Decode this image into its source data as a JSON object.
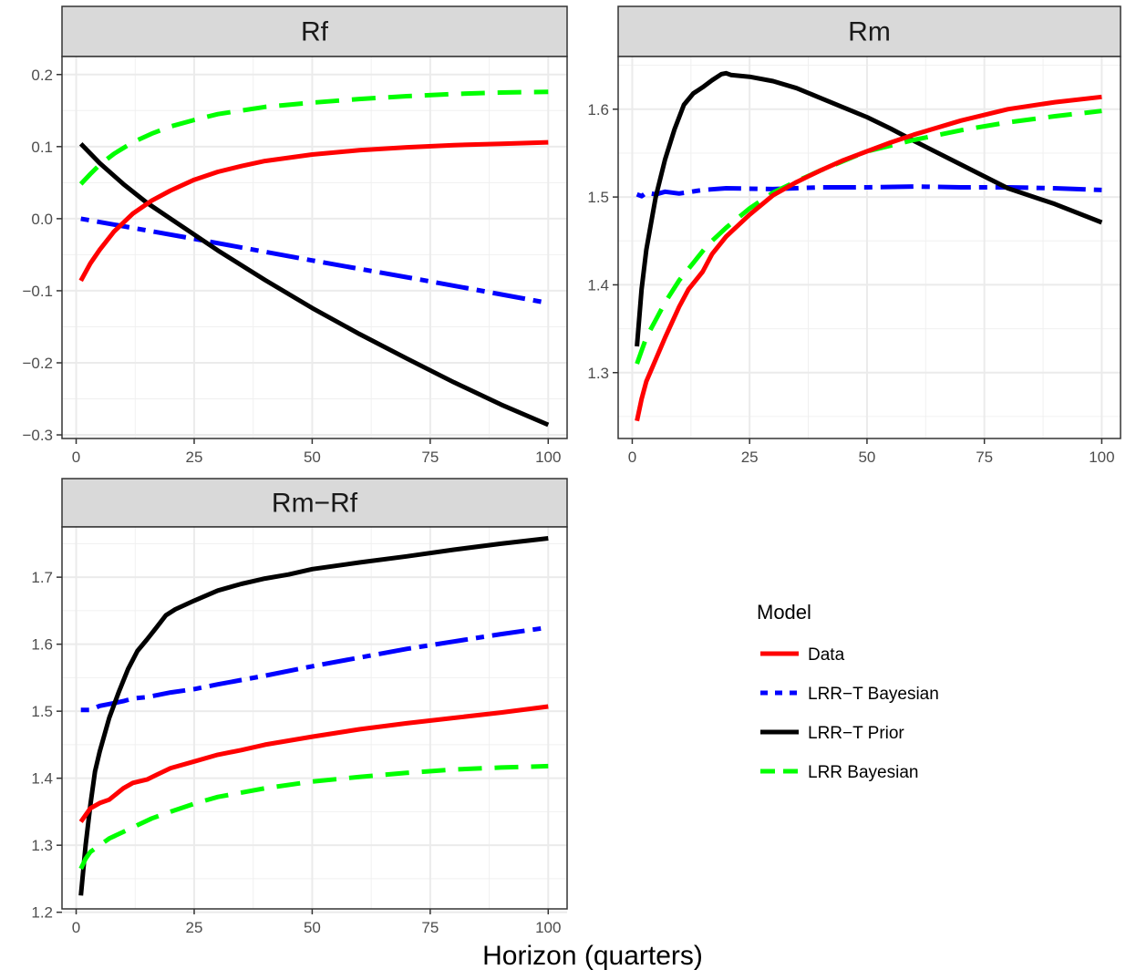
{
  "xlabel": "Horizon (quarters)",
  "legend": {
    "title": "Model",
    "entries": [
      {
        "key": "data",
        "label": "Data",
        "color": "#ff0000",
        "dash": "solid"
      },
      {
        "key": "lrrt_bayes",
        "label": "LRR−T Bayesian",
        "color": "#0000ff",
        "dash": "dotdash"
      },
      {
        "key": "lrrt_prior",
        "label": "LRR−T Prior",
        "color": "#000000",
        "dash": "solid"
      },
      {
        "key": "lrr_bayes",
        "label": "LRR Bayesian",
        "color": "#00ff00",
        "dash": "dashed"
      }
    ]
  },
  "chart_data": [
    {
      "type": "line",
      "title": "Rf",
      "xlim": [
        -3,
        104
      ],
      "ylim": [
        -0.305,
        0.225
      ],
      "xticks": [
        0,
        25,
        50,
        75,
        100
      ],
      "yticks": [
        -0.3,
        -0.2,
        -0.1,
        0.0,
        0.1,
        0.2
      ],
      "ytick_labels": [
        "−0.3",
        "−0.2",
        "−0.1",
        "0.0",
        "0.1",
        "0.2"
      ],
      "series": [
        {
          "key": "data",
          "name": "Data",
          "x": [
            1,
            3,
            5,
            8,
            12,
            16,
            20,
            25,
            30,
            35,
            40,
            50,
            60,
            70,
            80,
            90,
            100
          ],
          "y": [
            -0.086,
            -0.062,
            -0.043,
            -0.018,
            0.007,
            0.025,
            0.039,
            0.054,
            0.065,
            0.073,
            0.08,
            0.089,
            0.095,
            0.099,
            0.102,
            0.104,
            0.106
          ]
        },
        {
          "key": "lrrt_bayes",
          "name": "LRR−T Bayesian",
          "x": [
            1,
            25,
            50,
            75,
            100
          ],
          "y": [
            0.0,
            -0.028,
            -0.058,
            -0.087,
            -0.117
          ]
        },
        {
          "key": "lrrt_prior",
          "name": "LRR−T Prior",
          "x": [
            1,
            5,
            10,
            15,
            20,
            25,
            30,
            40,
            50,
            60,
            70,
            80,
            90,
            100
          ],
          "y": [
            0.104,
            0.077,
            0.048,
            0.022,
            0.0,
            -0.022,
            -0.044,
            -0.085,
            -0.124,
            -0.16,
            -0.194,
            -0.227,
            -0.258,
            -0.286
          ]
        },
        {
          "key": "lrr_bayes",
          "name": "LRR Bayesian",
          "x": [
            1,
            3,
            5,
            8,
            12,
            16,
            20,
            25,
            30,
            40,
            50,
            60,
            70,
            80,
            90,
            100
          ],
          "y": [
            0.048,
            0.062,
            0.075,
            0.09,
            0.106,
            0.118,
            0.128,
            0.137,
            0.145,
            0.155,
            0.161,
            0.166,
            0.17,
            0.173,
            0.175,
            0.176
          ]
        }
      ]
    },
    {
      "type": "line",
      "title": "Rm",
      "xlim": [
        -3,
        104
      ],
      "ylim": [
        1.225,
        1.66
      ],
      "xticks": [
        0,
        25,
        50,
        75,
        100
      ],
      "yticks": [
        1.3,
        1.4,
        1.5,
        1.6
      ],
      "ytick_labels": [
        "1.3",
        "1.4",
        "1.5",
        "1.6"
      ],
      "series": [
        {
          "key": "data",
          "name": "Data",
          "x": [
            1,
            2,
            3,
            5,
            7,
            10,
            12,
            15,
            17,
            20,
            25,
            30,
            35,
            40,
            45,
            50,
            55,
            60,
            70,
            80,
            90,
            100
          ],
          "y": [
            1.245,
            1.27,
            1.29,
            1.315,
            1.34,
            1.375,
            1.395,
            1.415,
            1.435,
            1.455,
            1.48,
            1.502,
            1.517,
            1.53,
            1.542,
            1.552,
            1.562,
            1.571,
            1.587,
            1.6,
            1.608,
            1.614
          ]
        },
        {
          "key": "lrrt_bayes",
          "name": "LRR−T Bayesian",
          "x": [
            1,
            2,
            3,
            5,
            7,
            10,
            15,
            20,
            30,
            40,
            50,
            60,
            70,
            80,
            90,
            100
          ],
          "y": [
            1.503,
            1.501,
            1.505,
            1.503,
            1.506,
            1.504,
            1.508,
            1.51,
            1.509,
            1.511,
            1.511,
            1.512,
            1.511,
            1.511,
            1.51,
            1.508
          ]
        },
        {
          "key": "lrrt_prior",
          "name": "LRR−T Prior",
          "x": [
            1,
            2,
            3,
            5,
            7,
            9,
            11,
            13,
            15,
            17,
            19,
            20,
            21,
            23,
            25,
            30,
            35,
            40,
            45,
            50,
            55,
            60,
            70,
            80,
            90,
            100
          ],
          "y": [
            1.33,
            1.395,
            1.44,
            1.5,
            1.543,
            1.577,
            1.605,
            1.618,
            1.625,
            1.633,
            1.64,
            1.641,
            1.639,
            1.638,
            1.637,
            1.632,
            1.624,
            1.613,
            1.602,
            1.591,
            1.578,
            1.564,
            1.537,
            1.51,
            1.492,
            1.471
          ]
        },
        {
          "key": "lrr_bayes",
          "name": "LRR Bayesian",
          "x": [
            1,
            2,
            3,
            5,
            7,
            10,
            13,
            16,
            20,
            25,
            30,
            35,
            40,
            50,
            60,
            70,
            80,
            90,
            100
          ],
          "y": [
            1.31,
            1.325,
            1.34,
            1.36,
            1.38,
            1.405,
            1.425,
            1.445,
            1.465,
            1.487,
            1.505,
            1.518,
            1.53,
            1.552,
            1.565,
            1.576,
            1.585,
            1.592,
            1.598
          ]
        }
      ]
    },
    {
      "type": "line",
      "title": "Rm−Rf",
      "xlim": [
        -3,
        104
      ],
      "ylim": [
        1.205,
        1.775
      ],
      "xticks": [
        0,
        25,
        50,
        75,
        100
      ],
      "yticks": [
        1.2,
        1.3,
        1.4,
        1.5,
        1.6,
        1.7
      ],
      "ytick_labels": [
        "1.2",
        "1.3",
        "1.4",
        "1.5",
        "1.6",
        "1.7"
      ],
      "series": [
        {
          "key": "data",
          "name": "Data",
          "x": [
            1,
            2,
            3,
            5,
            7,
            10,
            12,
            15,
            17,
            20,
            25,
            30,
            35,
            40,
            50,
            60,
            70,
            80,
            90,
            100
          ],
          "y": [
            1.335,
            1.345,
            1.355,
            1.363,
            1.368,
            1.385,
            1.393,
            1.398,
            1.405,
            1.415,
            1.425,
            1.435,
            1.442,
            1.45,
            1.462,
            1.473,
            1.482,
            1.49,
            1.498,
            1.507
          ]
        },
        {
          "key": "lrrt_bayes",
          "name": "LRR−T Bayesian",
          "x": [
            1,
            3,
            5,
            8,
            10,
            12,
            15,
            20,
            25,
            30,
            40,
            50,
            60,
            70,
            80,
            90,
            100
          ],
          "y": [
            1.502,
            1.502,
            1.508,
            1.512,
            1.515,
            1.519,
            1.521,
            1.528,
            1.533,
            1.54,
            1.553,
            1.567,
            1.58,
            1.593,
            1.604,
            1.615,
            1.625
          ]
        },
        {
          "key": "lrrt_prior",
          "name": "LRR−T Prior",
          "x": [
            1,
            2,
            3,
            4,
            5,
            7,
            9,
            11,
            13,
            15,
            17,
            19,
            21,
            25,
            30,
            35,
            40,
            45,
            50,
            60,
            70,
            80,
            90,
            100
          ],
          "y": [
            1.225,
            1.3,
            1.36,
            1.41,
            1.44,
            1.49,
            1.528,
            1.563,
            1.59,
            1.607,
            1.625,
            1.643,
            1.652,
            1.665,
            1.68,
            1.69,
            1.698,
            1.704,
            1.712,
            1.722,
            1.731,
            1.741,
            1.75,
            1.758
          ]
        },
        {
          "key": "lrr_bayes",
          "name": "LRR Bayesian",
          "x": [
            1,
            2,
            3,
            5,
            7,
            10,
            13,
            16,
            20,
            25,
            30,
            40,
            50,
            60,
            70,
            80,
            90,
            100
          ],
          "y": [
            1.265,
            1.28,
            1.29,
            1.3,
            1.31,
            1.32,
            1.33,
            1.34,
            1.35,
            1.362,
            1.372,
            1.385,
            1.395,
            1.402,
            1.408,
            1.413,
            1.416,
            1.418
          ]
        }
      ]
    }
  ]
}
